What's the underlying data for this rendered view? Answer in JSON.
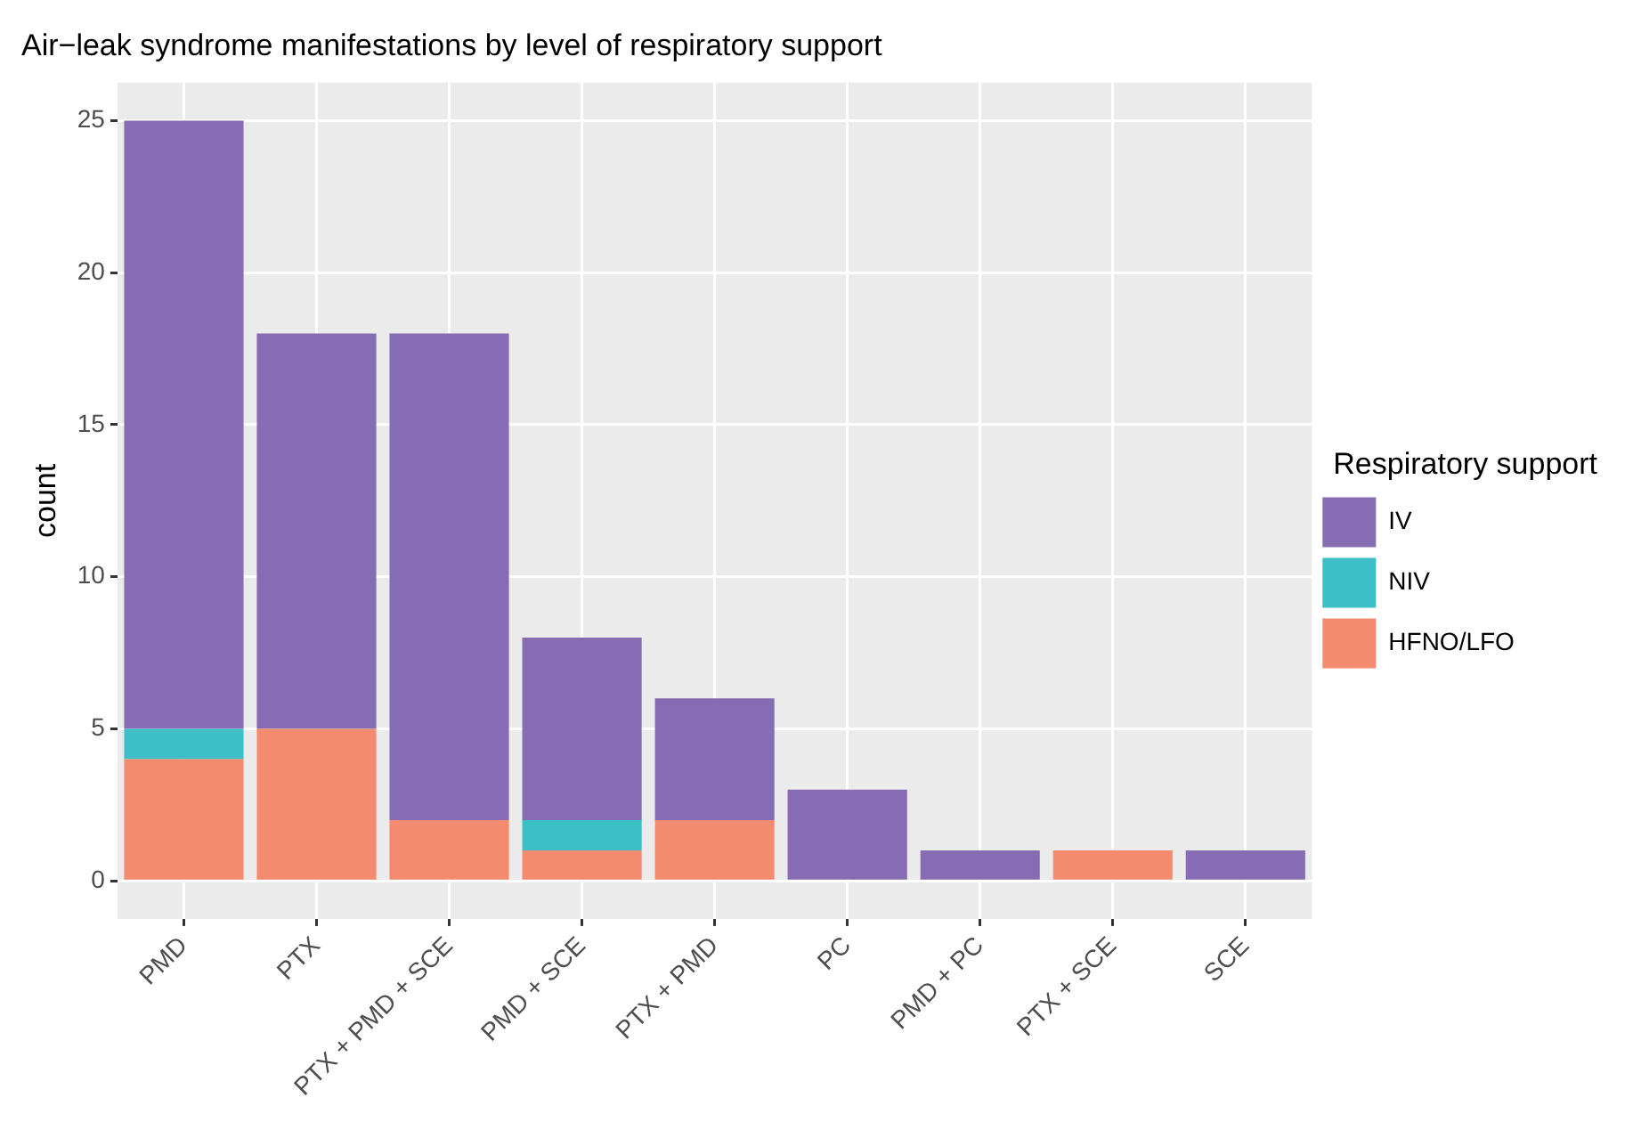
{
  "chart_data": {
    "type": "bar",
    "title": "Air−leak syndrome manifestations by level of respiratory support",
    "ylabel": "count",
    "legend_title": "Respiratory support",
    "categories": [
      "PMD",
      "PTX",
      "PTX + PMD + SCE",
      "PMD + SCE",
      "PTX + PMD",
      "PC",
      "PMD + PC",
      "PTX + SCE",
      "SCE"
    ],
    "series": [
      {
        "name": "HFNO/LFO",
        "color": "#f58b6e",
        "values": [
          4,
          5,
          2,
          1,
          2,
          0,
          0,
          1,
          0
        ]
      },
      {
        "name": "NIV",
        "color": "#3dbfc7",
        "values": [
          1,
          0,
          0,
          1,
          0,
          0,
          0,
          0,
          0
        ]
      },
      {
        "name": "IV",
        "color": "#866db3",
        "values": [
          20,
          13,
          16,
          6,
          4,
          3,
          1,
          0,
          1
        ]
      }
    ],
    "stacked": true,
    "ylim": [
      -1.25,
      26.25
    ],
    "yticks": [
      0,
      5,
      10,
      15,
      20,
      25
    ],
    "grid": true,
    "legend": "right"
  }
}
